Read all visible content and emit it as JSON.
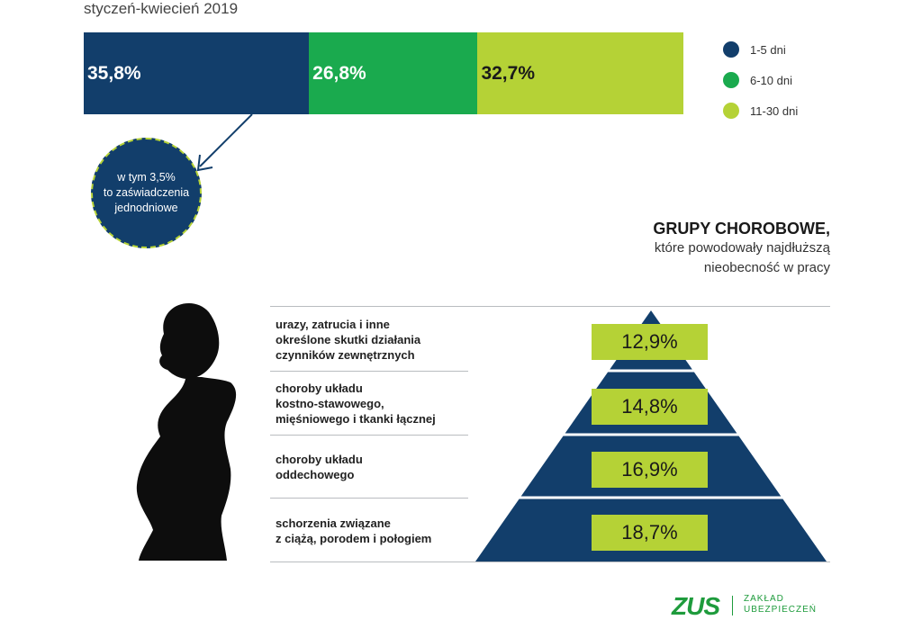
{
  "subtitle": "styczeń-kwiecień 2019",
  "colors": {
    "navy": "#123e6b",
    "green": "#1aaa4e",
    "lime": "#b5d236"
  },
  "chart_data": [
    {
      "type": "bar",
      "orientation": "horizontal-stacked",
      "categories": [
        "1-5 dni",
        "6-10 dni",
        "11-30 dni"
      ],
      "values": [
        35.8,
        26.8,
        32.7
      ],
      "labels": [
        "35,8%",
        "26,8%",
        "32,7%"
      ],
      "colors": [
        "#123e6b",
        "#1aaa4e",
        "#b5d236"
      ],
      "legend_position": "right"
    },
    {
      "type": "bar",
      "orientation": "pyramid",
      "title": "GRUPY CHOROBOWE,",
      "subtitle_lines": [
        "które powodowały najdłuższą",
        "nieobecność w pracy"
      ],
      "categories": [
        [
          "urazy, zatrucia i inne",
          "określone skutki działania",
          "czynników zewnętrznych"
        ],
        [
          "choroby układu",
          "kostno-stawowego,",
          "mięśniowego i tkanki łącznej"
        ],
        [
          "choroby układu",
          "oddechowego"
        ],
        [
          "schorzenia związane",
          "z ciążą, porodem i połogiem"
        ]
      ],
      "values": [
        12.9,
        14.8,
        16.9,
        18.7
      ],
      "labels": [
        "12,9%",
        "14,8%",
        "16,9%",
        "18,7%"
      ]
    }
  ],
  "callout": {
    "lines": [
      "w tym 3,5%",
      "to zaświadczenia",
      "jednodniowe"
    ]
  },
  "logo": {
    "mark": "ZUS",
    "text_lines": [
      "ZAKŁAD",
      "UBEZPIECZEŃ"
    ]
  }
}
